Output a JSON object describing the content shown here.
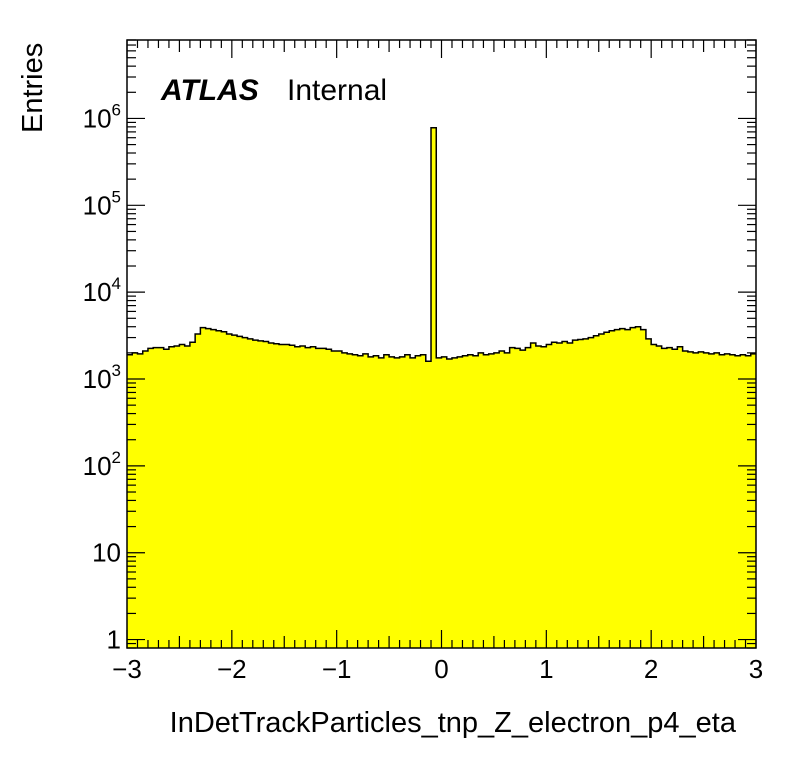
{
  "chart_data": {
    "type": "bar",
    "title": "",
    "xlabel": "InDetTrackParticles_tnp_Z_electron_p4_eta",
    "ylabel": "Entries",
    "xlim": [
      -3,
      3
    ],
    "ylim": [
      0.8,
      8000000
    ],
    "yscale": "log",
    "grid": false,
    "legend": "none",
    "label": {
      "experiment": "ATLAS",
      "status": "Internal"
    },
    "x_ticks": [
      {
        "value": -3,
        "label": "−3"
      },
      {
        "value": -2,
        "label": "−2"
      },
      {
        "value": -1,
        "label": "−1"
      },
      {
        "value": 0,
        "label": "0"
      },
      {
        "value": 1,
        "label": "1"
      },
      {
        "value": 2,
        "label": "2"
      },
      {
        "value": 3,
        "label": "3"
      }
    ],
    "y_ticks": [
      {
        "value": 1,
        "base": "1",
        "exp": ""
      },
      {
        "value": 10,
        "base": "10",
        "exp": ""
      },
      {
        "value": 100,
        "base": "10",
        "exp": "2"
      },
      {
        "value": 1000,
        "base": "10",
        "exp": "3"
      },
      {
        "value": 10000,
        "base": "10",
        "exp": "4"
      },
      {
        "value": 100000,
        "base": "10",
        "exp": "5"
      },
      {
        "value": 1000000,
        "base": "10",
        "exp": "6"
      }
    ],
    "bin_edges_range": [
      -3,
      3
    ],
    "n_bins": 120,
    "values": [
      1900,
      2000,
      1950,
      2100,
      2250,
      2300,
      2300,
      2200,
      2350,
      2400,
      2500,
      2400,
      2650,
      3300,
      3900,
      3800,
      3700,
      3600,
      3500,
      3300,
      3200,
      3100,
      3000,
      2900,
      2800,
      2750,
      2700,
      2600,
      2550,
      2500,
      2500,
      2450,
      2350,
      2400,
      2300,
      2350,
      2250,
      2250,
      2200,
      2100,
      2100,
      2000,
      1950,
      1900,
      1850,
      1950,
      1800,
      1850,
      1750,
      1900,
      1800,
      1750,
      1800,
      1900,
      1750,
      1850,
      1900,
      1600,
      780000,
      1750,
      1800,
      1700,
      1750,
      1800,
      1850,
      1900,
      1850,
      2000,
      1900,
      1950,
      2000,
      2100,
      2000,
      2300,
      2250,
      2150,
      2300,
      2600,
      2400,
      2350,
      2500,
      2650,
      2600,
      2700,
      2600,
      2800,
      2850,
      2900,
      3000,
      3150,
      3300,
      3450,
      3600,
      3700,
      3800,
      3700,
      3900,
      4000,
      3700,
      2900,
      2500,
      2400,
      2250,
      2300,
      2200,
      2350,
      2100,
      2050,
      2000,
      2050,
      2000,
      1950,
      2000,
      1900,
      1950,
      1900,
      1850,
      1900,
      1850,
      1950
    ],
    "fill_color": "#ffff00",
    "line_color": "#000000"
  }
}
